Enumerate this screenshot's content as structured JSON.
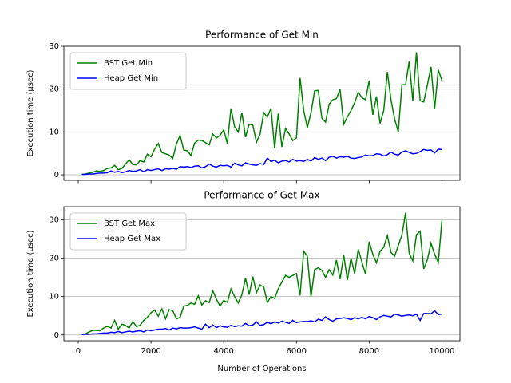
{
  "chart_data": [
    {
      "type": "line",
      "title": "Performance of Get Min",
      "ylabel": "Execution time (μsec)",
      "x": [
        100,
        200,
        300,
        400,
        500,
        600,
        700,
        800,
        900,
        1000,
        1100,
        1200,
        1300,
        1400,
        1500,
        1600,
        1700,
        1800,
        1900,
        2000,
        2100,
        2200,
        2300,
        2400,
        2500,
        2600,
        2700,
        2800,
        2900,
        3000,
        3100,
        3200,
        3300,
        3400,
        3500,
        3600,
        3700,
        3800,
        3900,
        4000,
        4100,
        4200,
        4300,
        4400,
        4500,
        4600,
        4700,
        4800,
        4900,
        5000,
        5100,
        5200,
        5300,
        5400,
        5500,
        5600,
        5700,
        5800,
        5900,
        6000,
        6100,
        6200,
        6300,
        6400,
        6500,
        6600,
        6700,
        6800,
        6900,
        7000,
        7100,
        7200,
        7300,
        7400,
        7500,
        7600,
        7700,
        7800,
        7900,
        8000,
        8100,
        8200,
        8300,
        8400,
        8500,
        8600,
        8700,
        8800,
        8900,
        9000,
        9100,
        9200,
        9300,
        9400,
        9500,
        9600,
        9700,
        9800,
        9900,
        10000
      ],
      "series": [
        {
          "name": "BST Get Min",
          "color": "#008000",
          "values": [
            0.1,
            0.2,
            0.4,
            0.6,
            0.9,
            0.8,
            1.0,
            1.5,
            1.6,
            2.2,
            1.2,
            1.5,
            2.5,
            3.5,
            2.4,
            2.3,
            3.3,
            3.0,
            4.8,
            4.2,
            6.0,
            7.3,
            5.2,
            4.9,
            4.6,
            3.8,
            7.2,
            9.2,
            5.8,
            5.6,
            4.5,
            7.4,
            8.1,
            8.0,
            7.5,
            7.0,
            9.5,
            8.6,
            9.2,
            10.5,
            7.3,
            15.5,
            11.2,
            10.0,
            14.5,
            8.8,
            11.8,
            11.6,
            7.6,
            9.5,
            14.5,
            13.5,
            15.5,
            6.2,
            14.3,
            6.5,
            10.8,
            9.5,
            8.0,
            8.6,
            22.6,
            15.0,
            11.0,
            14.5,
            19.6,
            19.7,
            13.2,
            12.3,
            16.5,
            17.5,
            17.8,
            19.9,
            11.8,
            13.5,
            15.0,
            16.8,
            19.3,
            18.0,
            17.5,
            22.0,
            14.0,
            18.3,
            12.0,
            15.0,
            24.0,
            17.5,
            13.0,
            10.0,
            21.0,
            21.0,
            26.5,
            17.3,
            28.6,
            17.3,
            17.0,
            21.0,
            25.2,
            15.5,
            24.5,
            22.0
          ]
        },
        {
          "name": "Heap Get Min",
          "color": "#0000ff",
          "values": [
            0.1,
            0.1,
            0.2,
            0.2,
            0.3,
            0.4,
            0.4,
            0.5,
            0.9,
            0.6,
            0.8,
            0.5,
            0.7,
            1.0,
            0.8,
            0.9,
            1.2,
            0.7,
            1.2,
            1.0,
            1.2,
            1.4,
            1.0,
            1.4,
            1.3,
            1.5,
            1.3,
            1.9,
            1.8,
            1.9,
            1.7,
            2.0,
            2.1,
            1.6,
            1.9,
            2.5,
            2.0,
            1.8,
            2.2,
            2.1,
            2.2,
            1.8,
            2.7,
            2.3,
            2.1,
            2.8,
            2.5,
            2.3,
            2.2,
            2.6,
            2.4,
            3.9,
            3.1,
            3.4,
            2.8,
            3.2,
            3.3,
            3.0,
            3.6,
            3.2,
            3.3,
            3.1,
            3.6,
            3.2,
            4.0,
            3.6,
            3.9,
            3.3,
            4.1,
            4.3,
            3.9,
            4.2,
            4.1,
            4.3,
            3.9,
            3.8,
            4.0,
            4.2,
            4.6,
            4.4,
            4.5,
            4.9,
            4.8,
            4.4,
            4.7,
            5.3,
            4.8,
            4.6,
            5.3,
            5.6,
            5.2,
            4.9,
            5.0,
            5.4,
            5.9,
            5.7,
            5.8,
            5.1,
            6.0,
            5.9
          ]
        }
      ],
      "xlim": [
        -395,
        10495
      ],
      "xticks": [
        0,
        2000,
        4000,
        6000,
        8000,
        10000
      ],
      "ylim": [
        -1.3,
        30.0
      ],
      "yticks": [
        0,
        10,
        20,
        30
      ],
      "grid": "y",
      "legend": "upper left"
    },
    {
      "type": "line",
      "title": "Performance of Get Max",
      "ylabel": "Execution time (μsec)",
      "xlabel": "Number of Operations",
      "x": [
        100,
        200,
        300,
        400,
        500,
        600,
        700,
        800,
        900,
        1000,
        1100,
        1200,
        1300,
        1400,
        1500,
        1600,
        1700,
        1800,
        1900,
        2000,
        2100,
        2200,
        2300,
        2400,
        2500,
        2600,
        2700,
        2800,
        2900,
        3000,
        3100,
        3200,
        3300,
        3400,
        3500,
        3600,
        3700,
        3800,
        3900,
        4000,
        4100,
        4200,
        4300,
        4400,
        4500,
        4600,
        4700,
        4800,
        4900,
        5000,
        5100,
        5200,
        5300,
        5400,
        5500,
        5600,
        5700,
        5800,
        5900,
        6000,
        6100,
        6200,
        6300,
        6400,
        6500,
        6600,
        6700,
        6800,
        6900,
        7000,
        7100,
        7200,
        7300,
        7400,
        7500,
        7600,
        7700,
        7800,
        7900,
        8000,
        8100,
        8200,
        8300,
        8400,
        8500,
        8600,
        8700,
        8800,
        8900,
        9000,
        9100,
        9200,
        9300,
        9400,
        9500,
        9600,
        9700,
        9800,
        9900,
        10000
      ],
      "series": [
        {
          "name": "BST Get Max",
          "color": "#008000",
          "values": [
            0.1,
            0.3,
            0.8,
            1.2,
            1.2,
            1.1,
            1.8,
            2.3,
            1.8,
            3.8,
            1.5,
            2.8,
            2.5,
            1.8,
            3.5,
            2.2,
            2.5,
            3.8,
            4.6,
            5.8,
            6.5,
            4.9,
            6.8,
            4.2,
            6.6,
            6.3,
            4.2,
            4.6,
            7.5,
            7.7,
            8.3,
            8.0,
            10.2,
            7.8,
            8.9,
            8.4,
            11.5,
            9.3,
            7.5,
            9.0,
            8.5,
            12.0,
            10.0,
            8.3,
            10.5,
            14.8,
            10.5,
            15.2,
            11.0,
            13.0,
            12.5,
            8.4,
            10.0,
            9.5,
            12.0,
            13.8,
            15.5,
            15.0,
            15.5,
            16.0,
            10.3,
            21.8,
            20.5,
            10.0,
            17.0,
            17.5,
            16.8,
            15.0,
            17.0,
            15.6,
            19.5,
            14.5,
            20.8,
            14.3,
            20.0,
            16.0,
            22.3,
            19.0,
            15.8,
            24.3,
            21.0,
            18.8,
            21.8,
            22.8,
            25.9,
            21.5,
            20.5,
            23.3,
            26.0,
            31.8,
            21.3,
            19.3,
            26.1,
            27.0,
            17.2,
            19.6,
            23.9,
            21.0,
            18.9,
            29.8
          ]
        },
        {
          "name": "Heap Get Max",
          "color": "#0000ff",
          "values": [
            0.1,
            0.2,
            0.2,
            0.3,
            0.3,
            0.4,
            0.5,
            0.5,
            0.7,
            0.6,
            0.9,
            0.6,
            0.8,
            1.0,
            0.8,
            1.0,
            1.1,
            0.8,
            1.3,
            1.1,
            1.3,
            1.5,
            1.5,
            1.7,
            1.3,
            1.8,
            1.6,
            1.9,
            1.8,
            1.8,
            1.9,
            2.1,
            1.8,
            1.5,
            2.8,
            1.9,
            2.6,
            1.9,
            2.4,
            2.1,
            2.0,
            2.5,
            2.2,
            2.4,
            2.3,
            3.0,
            2.4,
            2.6,
            3.4,
            2.5,
            2.7,
            3.3,
            2.9,
            3.4,
            3.1,
            3.6,
            3.3,
            3.0,
            3.8,
            3.2,
            3.4,
            3.5,
            3.5,
            3.7,
            3.4,
            4.1,
            3.8,
            4.7,
            4.0,
            3.6,
            4.2,
            4.3,
            4.5,
            4.3,
            4.0,
            4.5,
            4.2,
            4.6,
            4.2,
            4.8,
            4.5,
            4.0,
            4.7,
            5.1,
            4.9,
            4.7,
            5.4,
            5.2,
            4.9,
            5.1,
            5.2,
            5.0,
            5.4,
            3.8,
            5.6,
            5.6,
            5.5,
            6.3,
            5.3,
            5.4
          ]
        }
      ],
      "xlim": [
        -395,
        10495
      ],
      "xticks": [
        0,
        2000,
        4000,
        6000,
        8000,
        10000
      ],
      "ylim": [
        -1.5,
        33.4
      ],
      "yticks": [
        0,
        10,
        20,
        30
      ],
      "grid": "y",
      "legend": "upper left"
    }
  ]
}
